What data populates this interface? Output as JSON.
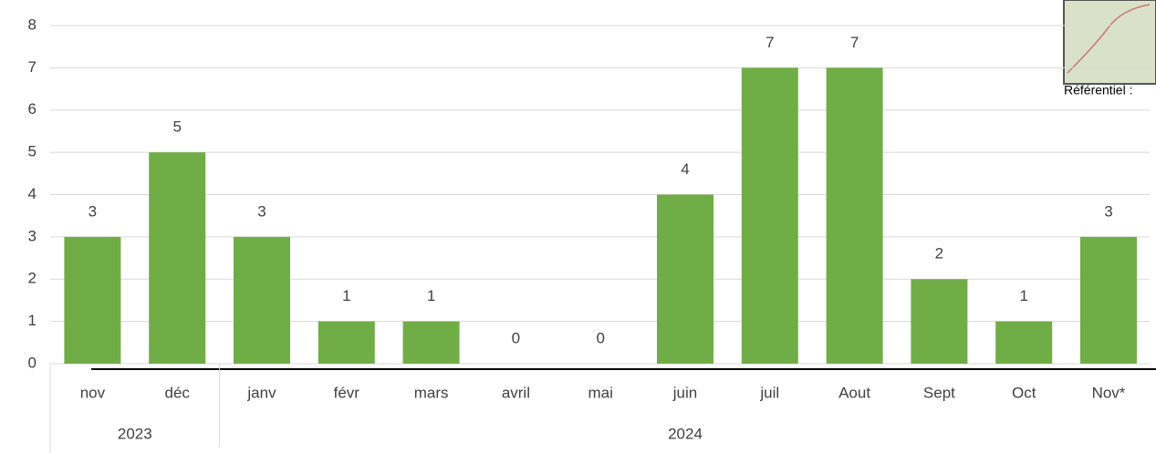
{
  "chart_data": {
    "type": "bar",
    "categories": [
      "nov",
      "déc",
      "janv",
      "févr",
      "mars",
      "avril",
      "mai",
      "juin",
      "juil",
      "Aout",
      "Sept",
      "Oct",
      "Nov*"
    ],
    "groups": [
      {
        "label": "2023",
        "span": 2
      },
      {
        "label": "2024",
        "span": 11
      }
    ],
    "values": [
      3,
      5,
      3,
      1,
      1,
      0,
      0,
      4,
      7,
      7,
      2,
      1,
      3
    ],
    "color": "#70ad47",
    "ylim": [
      0,
      8
    ],
    "yticks": [
      0,
      1,
      2,
      3,
      4,
      5,
      6,
      7,
      8
    ],
    "grid": true,
    "annotation": "Référentiel :"
  }
}
